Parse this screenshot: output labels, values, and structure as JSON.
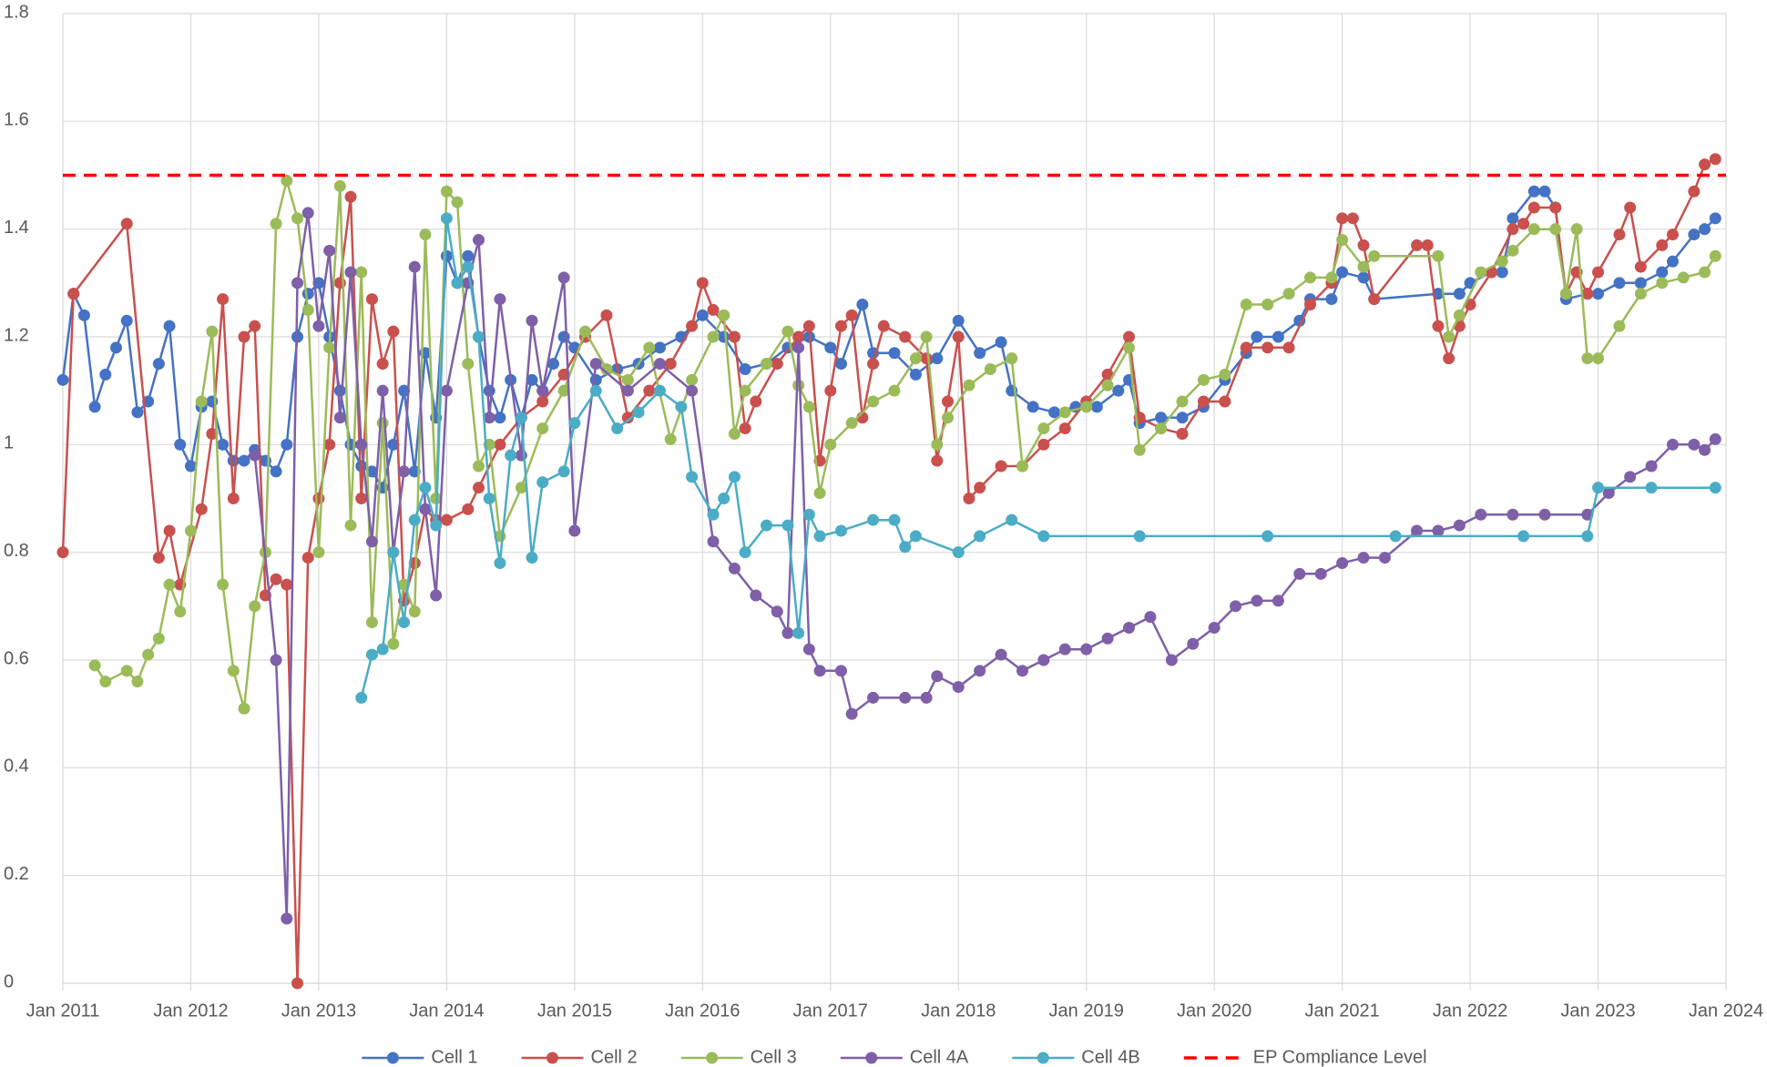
{
  "chart_data": {
    "type": "line",
    "xlim": [
      "2011-01",
      "2024-01"
    ],
    "xticks": [
      {
        "value": "2011-01",
        "label": "Jan 2011"
      },
      {
        "value": "2012-01",
        "label": "Jan 2012"
      },
      {
        "value": "2013-01",
        "label": "Jan 2013"
      },
      {
        "value": "2014-01",
        "label": "Jan 2014"
      },
      {
        "value": "2015-01",
        "label": "Jan 2015"
      },
      {
        "value": "2016-01",
        "label": "Jan 2016"
      },
      {
        "value": "2017-01",
        "label": "Jan 2017"
      },
      {
        "value": "2018-01",
        "label": "Jan 2018"
      },
      {
        "value": "2019-01",
        "label": "Jan 2019"
      },
      {
        "value": "2020-01",
        "label": "Jan 2020"
      },
      {
        "value": "2021-01",
        "label": "Jan 2021"
      },
      {
        "value": "2022-01",
        "label": "Jan 2022"
      },
      {
        "value": "2023-01",
        "label": "Jan 2023"
      },
      {
        "value": "2024-01",
        "label": "Jan 2024"
      }
    ],
    "ylim": [
      0,
      1.8
    ],
    "yticks": [
      0,
      0.2,
      0.4,
      0.6,
      0.8,
      1,
      1.2,
      1.4,
      1.6,
      1.8
    ],
    "grid": true,
    "legend": "bottom",
    "markers": true,
    "series": [
      {
        "name": "Cell 1",
        "color": "#4472c4",
        "x": [
          "2011-01",
          "2011-02",
          "2011-03",
          "2011-04",
          "2011-05",
          "2011-06",
          "2011-07",
          "2011-08",
          "2011-09",
          "2011-10",
          "2011-11",
          "2011-12",
          "2012-01",
          "2012-02",
          "2012-03",
          "2012-04",
          "2012-05",
          "2012-06",
          "2012-07",
          "2012-08",
          "2012-09",
          "2012-10",
          "2012-11",
          "2012-12",
          "2013-01",
          "2013-02",
          "2013-03",
          "2013-04",
          "2013-05",
          "2013-06",
          "2013-07",
          "2013-08",
          "2013-09",
          "2013-10",
          "2013-11",
          "2013-12",
          "2014-01",
          "2014-02",
          "2014-03",
          "2014-04",
          "2014-05",
          "2014-06",
          "2014-07",
          "2014-08",
          "2014-09",
          "2014-10",
          "2014-11",
          "2014-12",
          "2015-01",
          "2015-03",
          "2015-05",
          "2015-07",
          "2015-09",
          "2015-11",
          "2016-01",
          "2016-03",
          "2016-05",
          "2016-07",
          "2016-09",
          "2016-11",
          "2017-01",
          "2017-02",
          "2017-04",
          "2017-05",
          "2017-07",
          "2017-09",
          "2017-11",
          "2018-01",
          "2018-03",
          "2018-05",
          "2018-06",
          "2018-08",
          "2018-10",
          "2018-12",
          "2019-02",
          "2019-04",
          "2019-05",
          "2019-06",
          "2019-08",
          "2019-10",
          "2019-12",
          "2020-02",
          "2020-04",
          "2020-05",
          "2020-07",
          "2020-09",
          "2020-10",
          "2020-12",
          "2021-01",
          "2021-03",
          "2021-04",
          "2021-10",
          "2021-12",
          "2022-01",
          "2022-03",
          "2022-04",
          "2022-05",
          "2022-07",
          "2022-08",
          "2022-09",
          "2022-10",
          "2022-12",
          "2023-01",
          "2023-03",
          "2023-05",
          "2023-07",
          "2023-08",
          "2023-10",
          "2023-11",
          "2023-12"
        ],
        "values": [
          1.12,
          1.28,
          1.24,
          1.07,
          1.13,
          1.18,
          1.23,
          1.06,
          1.08,
          1.15,
          1.22,
          1.0,
          0.96,
          1.07,
          1.08,
          1.0,
          0.97,
          0.97,
          0.99,
          0.97,
          0.95,
          1.0,
          1.2,
          1.28,
          1.3,
          1.2,
          1.1,
          1.0,
          0.96,
          0.95,
          0.92,
          1.0,
          1.1,
          0.95,
          1.17,
          1.05,
          1.35,
          1.3,
          1.35,
          1.2,
          1.1,
          1.05,
          1.12,
          1.05,
          1.12,
          1.1,
          1.15,
          1.2,
          1.18,
          1.12,
          1.14,
          1.15,
          1.18,
          1.2,
          1.24,
          1.2,
          1.14,
          1.15,
          1.18,
          1.2,
          1.18,
          1.15,
          1.26,
          1.17,
          1.17,
          1.13,
          1.16,
          1.23,
          1.17,
          1.19,
          1.1,
          1.07,
          1.06,
          1.07,
          1.07,
          1.1,
          1.12,
          1.04,
          1.05,
          1.05,
          1.07,
          1.12,
          1.17,
          1.2,
          1.2,
          1.23,
          1.27,
          1.27,
          1.32,
          1.31,
          1.27,
          1.28,
          1.28,
          1.3,
          1.32,
          1.32,
          1.42,
          1.47,
          1.47,
          1.44,
          1.27,
          1.28,
          1.28,
          1.3,
          1.3,
          1.32,
          1.34,
          1.39,
          1.4,
          1.42
        ]
      },
      {
        "name": "Cell 2",
        "color": "#c9504d",
        "x": [
          "2011-01",
          "2011-02",
          "2011-07",
          "2011-10",
          "2011-11",
          "2011-12",
          "2012-02",
          "2012-03",
          "2012-04",
          "2012-05",
          "2012-06",
          "2012-07",
          "2012-08",
          "2012-09",
          "2012-10",
          "2012-11",
          "2012-12",
          "2013-01",
          "2013-02",
          "2013-03",
          "2013-04",
          "2013-05",
          "2013-06",
          "2013-07",
          "2013-08",
          "2013-09",
          "2013-10",
          "2013-11",
          "2013-12",
          "2014-01",
          "2014-03",
          "2014-04",
          "2014-06",
          "2014-08",
          "2014-10",
          "2014-12",
          "2015-02",
          "2015-04",
          "2015-06",
          "2015-08",
          "2015-10",
          "2015-12",
          "2016-01",
          "2016-02",
          "2016-04",
          "2016-05",
          "2016-06",
          "2016-08",
          "2016-10",
          "2016-11",
          "2016-12",
          "2017-01",
          "2017-02",
          "2017-03",
          "2017-04",
          "2017-05",
          "2017-06",
          "2017-08",
          "2017-10",
          "2017-11",
          "2017-12",
          "2018-01",
          "2018-02",
          "2018-03",
          "2018-05",
          "2018-07",
          "2018-09",
          "2018-11",
          "2019-01",
          "2019-03",
          "2019-05",
          "2019-06",
          "2019-08",
          "2019-10",
          "2019-12",
          "2020-02",
          "2020-04",
          "2020-06",
          "2020-08",
          "2020-10",
          "2020-12",
          "2021-01",
          "2021-02",
          "2021-03",
          "2021-04",
          "2021-08",
          "2021-09",
          "2021-10",
          "2021-11",
          "2021-12",
          "2022-01",
          "2022-03",
          "2022-05",
          "2022-06",
          "2022-07",
          "2022-09",
          "2022-10",
          "2022-11",
          "2022-12",
          "2023-01",
          "2023-03",
          "2023-04",
          "2023-05",
          "2023-07",
          "2023-08",
          "2023-10",
          "2023-11",
          "2023-12"
        ],
        "values": [
          0.8,
          1.28,
          1.41,
          0.79,
          0.84,
          0.74,
          0.88,
          1.02,
          1.27,
          0.9,
          1.2,
          1.22,
          0.72,
          0.75,
          0.74,
          0.0,
          0.79,
          0.9,
          1.0,
          1.3,
          1.46,
          0.9,
          1.27,
          1.15,
          1.21,
          0.71,
          0.78,
          0.88,
          0.86,
          0.86,
          0.88,
          0.92,
          1.0,
          1.05,
          1.08,
          1.13,
          1.2,
          1.24,
          1.05,
          1.1,
          1.15,
          1.22,
          1.3,
          1.25,
          1.2,
          1.03,
          1.08,
          1.15,
          1.2,
          1.22,
          0.97,
          1.1,
          1.22,
          1.24,
          1.05,
          1.15,
          1.22,
          1.2,
          1.16,
          0.97,
          1.08,
          1.2,
          0.9,
          0.92,
          0.96,
          0.96,
          1.0,
          1.03,
          1.08,
          1.13,
          1.2,
          1.05,
          1.03,
          1.02,
          1.08,
          1.08,
          1.18,
          1.18,
          1.18,
          1.26,
          1.3,
          1.42,
          1.42,
          1.37,
          1.27,
          1.37,
          1.37,
          1.22,
          1.16,
          1.22,
          1.26,
          1.32,
          1.4,
          1.41,
          1.44,
          1.44,
          1.28,
          1.32,
          1.28,
          1.32,
          1.39,
          1.44,
          1.33,
          1.37,
          1.39,
          1.47,
          1.52,
          1.53
        ]
      },
      {
        "name": "Cell 3",
        "color": "#9bbb59",
        "x": [
          "2011-04",
          "2011-05",
          "2011-07",
          "2011-08",
          "2011-09",
          "2011-10",
          "2011-11",
          "2011-12",
          "2012-01",
          "2012-02",
          "2012-03",
          "2012-04",
          "2012-05",
          "2012-06",
          "2012-07",
          "2012-08",
          "2012-09",
          "2012-10",
          "2012-11",
          "2012-12",
          "2013-01",
          "2013-02",
          "2013-03",
          "2013-04",
          "2013-05",
          "2013-06",
          "2013-07",
          "2013-08",
          "2013-09",
          "2013-10",
          "2013-11",
          "2013-12",
          "2014-01",
          "2014-02",
          "2014-03",
          "2014-04",
          "2014-05",
          "2014-06",
          "2014-08",
          "2014-10",
          "2014-12",
          "2015-02",
          "2015-04",
          "2015-06",
          "2015-08",
          "2015-10",
          "2015-12",
          "2016-02",
          "2016-03",
          "2016-04",
          "2016-05",
          "2016-07",
          "2016-09",
          "2016-10",
          "2016-11",
          "2016-12",
          "2017-01",
          "2017-03",
          "2017-05",
          "2017-07",
          "2017-09",
          "2017-10",
          "2017-11",
          "2017-12",
          "2018-02",
          "2018-04",
          "2018-06",
          "2018-07",
          "2018-09",
          "2018-11",
          "2019-01",
          "2019-03",
          "2019-05",
          "2019-06",
          "2019-08",
          "2019-10",
          "2019-12",
          "2020-02",
          "2020-04",
          "2020-06",
          "2020-08",
          "2020-10",
          "2020-12",
          "2021-01",
          "2021-03",
          "2021-04",
          "2021-10",
          "2021-11",
          "2021-12",
          "2022-02",
          "2022-04",
          "2022-05",
          "2022-07",
          "2022-09",
          "2022-10",
          "2022-11",
          "2022-12",
          "2023-01",
          "2023-03",
          "2023-05",
          "2023-07",
          "2023-09",
          "2023-11",
          "2023-12"
        ],
        "values": [
          0.59,
          0.56,
          0.58,
          0.56,
          0.61,
          0.64,
          0.74,
          0.69,
          0.84,
          1.08,
          1.21,
          0.74,
          0.58,
          0.51,
          0.7,
          0.8,
          1.41,
          1.49,
          1.42,
          1.25,
          0.8,
          1.18,
          1.48,
          0.85,
          1.32,
          0.67,
          1.04,
          0.63,
          0.74,
          0.69,
          1.39,
          0.9,
          1.47,
          1.45,
          1.15,
          0.96,
          1.0,
          0.83,
          0.92,
          1.03,
          1.1,
          1.21,
          1.14,
          1.12,
          1.18,
          1.01,
          1.12,
          1.2,
          1.24,
          1.02,
          1.1,
          1.15,
          1.21,
          1.11,
          1.07,
          0.91,
          1.0,
          1.04,
          1.08,
          1.1,
          1.16,
          1.2,
          1.0,
          1.05,
          1.11,
          1.14,
          1.16,
          0.96,
          1.03,
          1.06,
          1.07,
          1.11,
          1.18,
          0.99,
          1.03,
          1.08,
          1.12,
          1.13,
          1.26,
          1.26,
          1.28,
          1.31,
          1.31,
          1.38,
          1.33,
          1.35,
          1.35,
          1.2,
          1.24,
          1.32,
          1.34,
          1.36,
          1.4,
          1.4,
          1.28,
          1.4,
          1.16,
          1.16,
          1.22,
          1.28,
          1.3,
          1.31,
          1.32,
          1.35
        ]
      },
      {
        "name": "Cell 4A",
        "color": "#7e5fa8",
        "x": [
          "2012-07",
          "2012-09",
          "2012-10",
          "2012-11",
          "2012-12",
          "2013-01",
          "2013-02",
          "2013-03",
          "2013-04",
          "2013-05",
          "2013-06",
          "2013-07",
          "2013-08",
          "2013-09",
          "2013-10",
          "2013-11",
          "2013-12",
          "2014-01",
          "2014-03",
          "2014-04",
          "2014-05",
          "2014-06",
          "2014-08",
          "2014-09",
          "2014-10",
          "2014-12",
          "2015-01",
          "2015-03",
          "2015-06",
          "2015-09",
          "2015-12",
          "2016-02",
          "2016-04",
          "2016-06",
          "2016-08",
          "2016-09",
          "2016-10",
          "2016-11",
          "2016-12",
          "2017-02",
          "2017-03",
          "2017-05",
          "2017-08",
          "2017-10",
          "2017-11",
          "2018-01",
          "2018-03",
          "2018-05",
          "2018-07",
          "2018-09",
          "2018-11",
          "2019-01",
          "2019-03",
          "2019-05",
          "2019-07",
          "2019-09",
          "2019-11",
          "2020-01",
          "2020-03",
          "2020-05",
          "2020-07",
          "2020-09",
          "2020-11",
          "2021-01",
          "2021-03",
          "2021-05",
          "2021-08",
          "2021-10",
          "2021-12",
          "2022-02",
          "2022-05",
          "2022-08",
          "2022-12",
          "2023-02",
          "2023-04",
          "2023-06",
          "2023-08",
          "2023-10",
          "2023-11",
          "2023-12"
        ],
        "values": [
          0.98,
          0.6,
          0.12,
          1.3,
          1.43,
          1.22,
          1.36,
          1.05,
          1.32,
          1.0,
          0.82,
          1.1,
          0.8,
          0.95,
          1.33,
          0.88,
          0.72,
          1.1,
          1.3,
          1.38,
          1.05,
          1.27,
          0.98,
          1.23,
          1.1,
          1.31,
          0.84,
          1.15,
          1.1,
          1.15,
          1.1,
          0.82,
          0.77,
          0.72,
          0.69,
          0.65,
          1.18,
          0.62,
          0.58,
          0.58,
          0.5,
          0.53,
          0.53,
          0.53,
          0.57,
          0.55,
          0.58,
          0.61,
          0.58,
          0.6,
          0.62,
          0.62,
          0.64,
          0.66,
          0.68,
          0.6,
          0.63,
          0.66,
          0.7,
          0.71,
          0.71,
          0.76,
          0.76,
          0.78,
          0.79,
          0.79,
          0.84,
          0.84,
          0.85,
          0.87,
          0.87,
          0.87,
          0.87,
          0.91,
          0.94,
          0.96,
          1.0,
          1.0,
          0.99,
          1.01
        ]
      },
      {
        "name": "Cell 4B",
        "color": "#4bacc6",
        "x": [
          "2013-05",
          "2013-06",
          "2013-07",
          "2013-08",
          "2013-09",
          "2013-10",
          "2013-11",
          "2013-12",
          "2014-01",
          "2014-02",
          "2014-03",
          "2014-04",
          "2014-05",
          "2014-06",
          "2014-07",
          "2014-08",
          "2014-09",
          "2014-10",
          "2014-12",
          "2015-01",
          "2015-03",
          "2015-05",
          "2015-07",
          "2015-09",
          "2015-11",
          "2015-12",
          "2016-02",
          "2016-03",
          "2016-04",
          "2016-05",
          "2016-07",
          "2016-09",
          "2016-10",
          "2016-11",
          "2016-12",
          "2017-02",
          "2017-05",
          "2017-07",
          "2017-08",
          "2017-09",
          "2018-01",
          "2018-03",
          "2018-06",
          "2018-09",
          "2019-06",
          "2020-06",
          "2021-06",
          "2022-06",
          "2022-12",
          "2023-01",
          "2023-06",
          "2023-12"
        ],
        "values": [
          0.53,
          0.61,
          0.62,
          0.8,
          0.67,
          0.86,
          0.92,
          0.85,
          1.42,
          1.3,
          1.33,
          1.2,
          0.9,
          0.78,
          0.98,
          1.05,
          0.79,
          0.93,
          0.95,
          1.04,
          1.1,
          1.03,
          1.06,
          1.1,
          1.07,
          0.94,
          0.87,
          0.9,
          0.94,
          0.8,
          0.85,
          0.85,
          0.65,
          0.87,
          0.83,
          0.84,
          0.86,
          0.86,
          0.81,
          0.83,
          0.8,
          0.83,
          0.86,
          0.83,
          0.83,
          0.83,
          0.83,
          0.83,
          0.83,
          0.92,
          0.92,
          0.92
        ]
      }
    ],
    "reference_line": {
      "name": "EP Compliance Level",
      "value": 1.5,
      "color": "#ff0000",
      "dashed": true
    }
  }
}
